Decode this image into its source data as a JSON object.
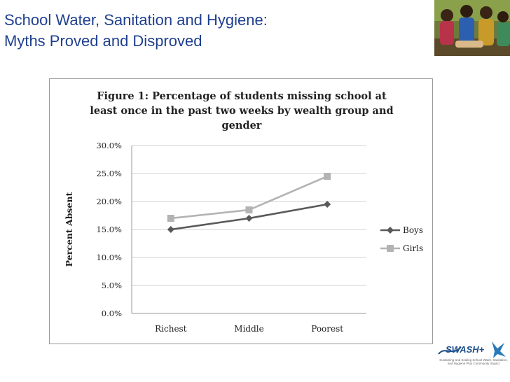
{
  "slide": {
    "title_line1": "School Water, Sanitation and Hygiene:",
    "title_line2": "Myths Proved and Disproved"
  },
  "photo": {
    "icon": "children-photo"
  },
  "logo": {
    "text": "SWASH+",
    "caption_line1": "Sustaining and Scaling School Water, Sanitation,",
    "caption_line2": "and Hygiene Plus Community Impact"
  },
  "chart_data": {
    "type": "line",
    "title_lines": [
      "Figure 1: Percentage of students missing school at",
      "least once in the past two weeks by wealth group and",
      "gender"
    ],
    "xlabel": "",
    "ylabel": "Percent Absent",
    "categories": [
      "Richest",
      "Middle",
      "Poorest"
    ],
    "ylim": [
      0,
      30
    ],
    "yticks": [
      "0.0%",
      "5.0%",
      "10.0%",
      "15.0%",
      "20.0%",
      "25.0%",
      "30.0%"
    ],
    "grid": true,
    "legend_position": "right",
    "series": [
      {
        "name": "Boys",
        "values": [
          15.0,
          17.0,
          19.5
        ],
        "color": "#595959",
        "marker": "diamond"
      },
      {
        "name": "Girls",
        "values": [
          17.0,
          18.5,
          24.5
        ],
        "color": "#b3b3b3",
        "marker": "square"
      }
    ]
  }
}
